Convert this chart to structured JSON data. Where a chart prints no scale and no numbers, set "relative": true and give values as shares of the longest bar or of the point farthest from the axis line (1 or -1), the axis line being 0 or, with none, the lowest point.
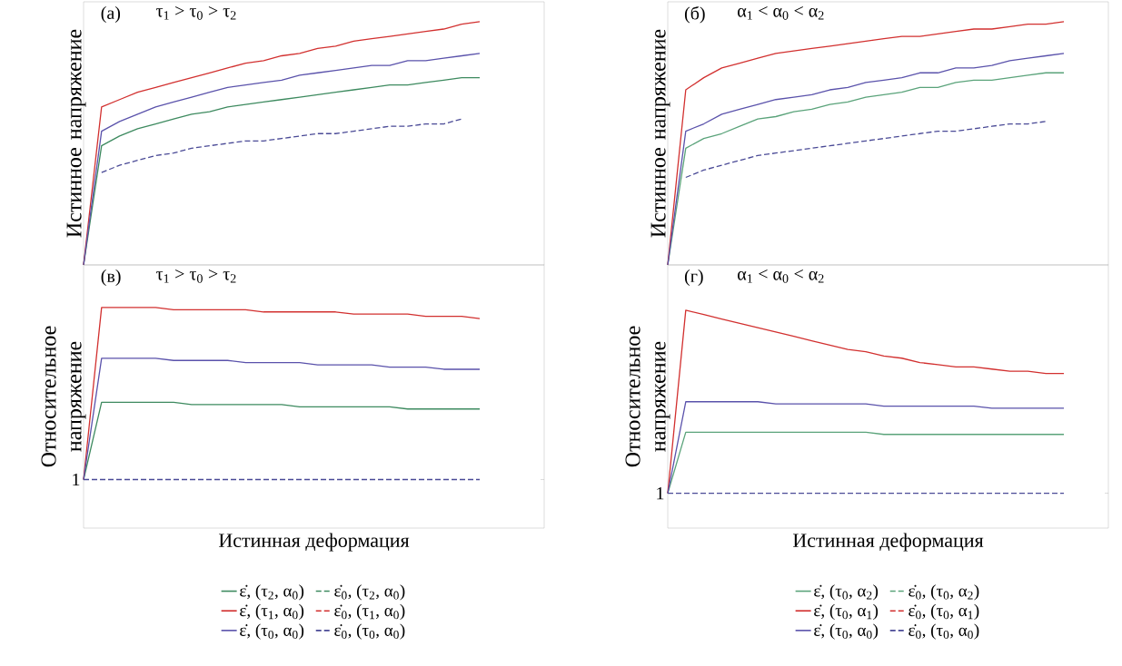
{
  "chart_data": [
    {
      "type": "line",
      "relative": true,
      "ylabel": "Истинное напряжение",
      "annotations": [
        "(а)",
        "τ$_{1}$ > τ$_{0}$ > τ$_{2}$"
      ],
      "categories": [
        null,
        null,
        null,
        null,
        null,
        null,
        null,
        null,
        null,
        null,
        null,
        null,
        null,
        null,
        null,
        null,
        null,
        null,
        null,
        null,
        null,
        null,
        null
      ],
      "series": [
        {
          "color": "#3d8a5f",
          "line_style": "solid",
          "values": [
            0,
            0.49,
            0.53,
            0.56,
            0.58,
            0.6,
            0.62,
            0.63,
            0.65,
            0.66,
            0.67,
            0.68,
            0.69,
            0.7,
            0.71,
            0.72,
            0.73,
            0.74,
            0.74,
            0.75,
            0.76,
            0.77,
            0.77
          ]
        },
        {
          "color": "#d2302f",
          "line_style": "solid",
          "values": [
            0,
            0.65,
            0.68,
            0.71,
            0.73,
            0.75,
            0.77,
            0.79,
            0.81,
            0.83,
            0.84,
            0.86,
            0.87,
            0.89,
            0.9,
            0.92,
            0.93,
            0.94,
            0.95,
            0.96,
            0.97,
            0.99,
            1.0
          ]
        },
        {
          "color": "#5a52ab",
          "line_style": "solid",
          "values": [
            0,
            0.55,
            0.59,
            0.62,
            0.65,
            0.67,
            0.69,
            0.71,
            0.73,
            0.74,
            0.75,
            0.76,
            0.78,
            0.79,
            0.8,
            0.81,
            0.82,
            0.82,
            0.84,
            0.84,
            0.85,
            0.86,
            0.87
          ]
        },
        {
          "color": "#4a4a96",
          "line_style": "dashed",
          "values": [
            null,
            0.38,
            0.41,
            0.43,
            0.45,
            0.46,
            0.48,
            0.49,
            0.5,
            0.51,
            0.51,
            0.52,
            0.53,
            0.54,
            0.54,
            0.55,
            0.56,
            0.57,
            0.57,
            0.58,
            0.58,
            0.6,
            null
          ]
        }
      ]
    },
    {
      "type": "line",
      "relative": true,
      "ylabel": "Истинное напряжение",
      "annotations": [
        "(б)",
        "α$_{1}$ < α$_{0}$ < α$_{2}$"
      ],
      "categories": [
        null,
        null,
        null,
        null,
        null,
        null,
        null,
        null,
        null,
        null,
        null,
        null,
        null,
        null,
        null,
        null,
        null,
        null,
        null,
        null,
        null,
        null,
        null
      ],
      "series": [
        {
          "color": "#5aa37a",
          "line_style": "solid",
          "values": [
            0,
            0.48,
            0.52,
            0.54,
            0.57,
            0.6,
            0.61,
            0.63,
            0.64,
            0.66,
            0.67,
            0.69,
            0.7,
            0.71,
            0.73,
            0.73,
            0.75,
            0.76,
            0.76,
            0.77,
            0.78,
            0.79,
            0.79
          ]
        },
        {
          "color": "#d2302f",
          "line_style": "solid",
          "values": [
            0,
            0.72,
            0.77,
            0.81,
            0.83,
            0.85,
            0.87,
            0.88,
            0.89,
            0.9,
            0.91,
            0.92,
            0.93,
            0.94,
            0.94,
            0.95,
            0.96,
            0.97,
            0.97,
            0.98,
            0.99,
            0.99,
            1.0
          ]
        },
        {
          "color": "#5a52ab",
          "line_style": "solid",
          "values": [
            0,
            0.55,
            0.58,
            0.62,
            0.64,
            0.66,
            0.68,
            0.69,
            0.7,
            0.72,
            0.73,
            0.75,
            0.76,
            0.77,
            0.79,
            0.79,
            0.81,
            0.81,
            0.82,
            0.84,
            0.85,
            0.86,
            0.87
          ]
        },
        {
          "color": "#4a4a96",
          "line_style": "dashed",
          "values": [
            null,
            0.36,
            0.39,
            0.41,
            0.43,
            0.45,
            0.46,
            0.47,
            0.48,
            0.49,
            0.5,
            0.51,
            0.52,
            0.53,
            0.54,
            0.55,
            0.55,
            0.56,
            0.57,
            0.58,
            0.58,
            0.59,
            null
          ]
        }
      ]
    },
    {
      "type": "line",
      "relative": true,
      "ylabel": "Относительное напряжение",
      "xlabel": "Истинная деформация",
      "legend": "bottom",
      "annotations": [
        "(в)",
        "τ$_{1}$ > τ$_{0}$ > τ$_{2}$",
        "1"
      ],
      "categories": [
        null,
        null,
        null,
        null,
        null,
        null,
        null,
        null,
        null,
        null,
        null,
        null,
        null,
        null,
        null,
        null,
        null,
        null,
        null,
        null,
        null,
        null,
        null
      ],
      "series": [
        {
          "name": "ε̇, (τ$_{2}$, α$_{0}$)",
          "color": "#3d8a5f",
          "line_style": "solid",
          "values": [
            0.22,
            0.57,
            0.57,
            0.57,
            0.57,
            0.57,
            0.56,
            0.56,
            0.56,
            0.56,
            0.56,
            0.56,
            0.55,
            0.55,
            0.55,
            0.55,
            0.55,
            0.55,
            0.54,
            0.54,
            0.54,
            0.54,
            0.54
          ]
        },
        {
          "name": "ε̇$_{0}$, (τ$_{2}$, α$_{0}$)",
          "color": "#3d8a5f",
          "line_style": "dashed",
          "values": [
            null,
            null,
            null,
            null,
            null,
            null,
            null,
            null,
            null,
            null,
            null,
            null,
            null,
            null,
            null,
            null,
            null,
            null,
            null,
            null,
            null,
            null,
            null
          ]
        },
        {
          "name": "ε̇, (τ$_{1}$, α$_{0}$)",
          "color": "#d2302f",
          "line_style": "solid",
          "values": [
            0.22,
            1.0,
            1.0,
            1.0,
            1.0,
            0.99,
            0.99,
            0.99,
            0.99,
            0.99,
            0.98,
            0.98,
            0.98,
            0.98,
            0.98,
            0.97,
            0.97,
            0.97,
            0.97,
            0.96,
            0.96,
            0.96,
            0.95
          ]
        },
        {
          "name": "ε̇$_{0}$, (τ$_{1}$, α$_{0}$)",
          "color": "#d2302f",
          "line_style": "dashed",
          "values": [
            null,
            null,
            null,
            null,
            null,
            null,
            null,
            null,
            null,
            null,
            null,
            null,
            null,
            null,
            null,
            null,
            null,
            null,
            null,
            null,
            null,
            null,
            null
          ]
        },
        {
          "name": "ε̇, (τ$_{0}$, α$_{0}$)",
          "color": "#5a52ab",
          "line_style": "solid",
          "values": [
            0.22,
            0.77,
            0.77,
            0.77,
            0.77,
            0.76,
            0.76,
            0.76,
            0.76,
            0.75,
            0.75,
            0.75,
            0.75,
            0.74,
            0.74,
            0.74,
            0.74,
            0.73,
            0.73,
            0.73,
            0.72,
            0.72,
            0.72
          ]
        },
        {
          "name": "ε̇$_{0}$, (τ$_{0}$, α$_{0}$)",
          "color": "#4a4a96",
          "line_style": "dashed",
          "values": [
            0.22,
            0.22,
            0.22,
            0.22,
            0.22,
            0.22,
            0.22,
            0.22,
            0.22,
            0.22,
            0.22,
            0.22,
            0.22,
            0.22,
            0.22,
            0.22,
            0.22,
            0.22,
            0.22,
            0.22,
            0.22,
            0.22,
            0.22
          ]
        }
      ]
    },
    {
      "type": "line",
      "relative": true,
      "ylabel": "Относительное напряжение",
      "xlabel": "Истинная деформация",
      "legend": "bottom",
      "annotations": [
        "(г)",
        "α$_{1}$ < α$_{0}$ < α$_{2}$",
        "1"
      ],
      "categories": [
        null,
        null,
        null,
        null,
        null,
        null,
        null,
        null,
        null,
        null,
        null,
        null,
        null,
        null,
        null,
        null,
        null,
        null,
        null,
        null,
        null,
        null,
        null
      ],
      "series": [
        {
          "name": "ε̇, (τ$_{0}$, α$_{2}$)",
          "color": "#5aa37a",
          "line_style": "solid",
          "values": [
            0.16,
            0.44,
            0.44,
            0.44,
            0.44,
            0.44,
            0.44,
            0.44,
            0.44,
            0.44,
            0.44,
            0.44,
            0.43,
            0.43,
            0.43,
            0.43,
            0.43,
            0.43,
            0.43,
            0.43,
            0.43,
            0.43,
            0.43
          ]
        },
        {
          "name": "ε̇$_{0}$, (τ$_{0}$, α$_{2}$)",
          "color": "#5aa37a",
          "line_style": "dashed",
          "values": [
            null,
            null,
            null,
            null,
            null,
            null,
            null,
            null,
            null,
            null,
            null,
            null,
            null,
            null,
            null,
            null,
            null,
            null,
            null,
            null,
            null,
            null,
            null
          ]
        },
        {
          "name": "ε̇, (τ$_{0}$, α$_{1}$)",
          "color": "#d2302f",
          "line_style": "solid",
          "values": [
            0.16,
            1.0,
            0.98,
            0.96,
            0.94,
            0.92,
            0.9,
            0.88,
            0.86,
            0.84,
            0.82,
            0.81,
            0.79,
            0.78,
            0.76,
            0.75,
            0.74,
            0.74,
            0.73,
            0.72,
            0.72,
            0.71,
            0.71
          ]
        },
        {
          "name": "ε̇$_{0}$, (τ$_{0}$, α$_{1}$)",
          "color": "#d2302f",
          "line_style": "dashed",
          "values": [
            null,
            null,
            null,
            null,
            null,
            null,
            null,
            null,
            null,
            null,
            null,
            null,
            null,
            null,
            null,
            null,
            null,
            null,
            null,
            null,
            null,
            null,
            null
          ]
        },
        {
          "name": "ε̇, (τ$_{0}$, α$_{0}$)",
          "color": "#5a52ab",
          "line_style": "solid",
          "values": [
            0.16,
            0.58,
            0.58,
            0.58,
            0.58,
            0.58,
            0.57,
            0.57,
            0.57,
            0.57,
            0.57,
            0.57,
            0.56,
            0.56,
            0.56,
            0.56,
            0.56,
            0.56,
            0.55,
            0.55,
            0.55,
            0.55,
            0.55
          ]
        },
        {
          "name": "ε̇$_{0}$, (τ$_{0}$, α$_{0}$)",
          "color": "#4a4a96",
          "line_style": "dashed",
          "values": [
            0.16,
            0.16,
            0.16,
            0.16,
            0.16,
            0.16,
            0.16,
            0.16,
            0.16,
            0.16,
            0.16,
            0.16,
            0.16,
            0.16,
            0.16,
            0.16,
            0.16,
            0.16,
            0.16,
            0.16,
            0.16,
            0.16,
            0.16
          ]
        }
      ]
    }
  ]
}
